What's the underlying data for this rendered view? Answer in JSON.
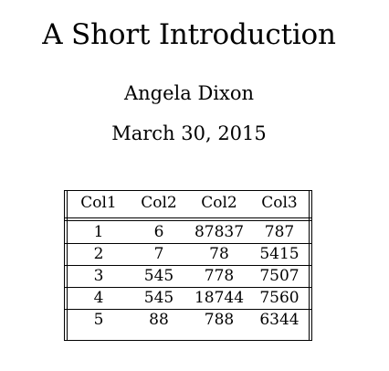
{
  "document": {
    "title": "A Short Introduction",
    "author": "Angela Dixon",
    "date": "March 30, 2015"
  },
  "table": {
    "headers": [
      "Col1",
      "Col2",
      "Col2",
      "Col3"
    ],
    "rows": [
      [
        "1",
        "6",
        "87837",
        "787"
      ],
      [
        "2",
        "7",
        "78",
        "5415"
      ],
      [
        "3",
        "545",
        "778",
        "7507"
      ],
      [
        "4",
        "545",
        "18744",
        "7560"
      ],
      [
        "5",
        "88",
        "788",
        "6344"
      ]
    ]
  }
}
